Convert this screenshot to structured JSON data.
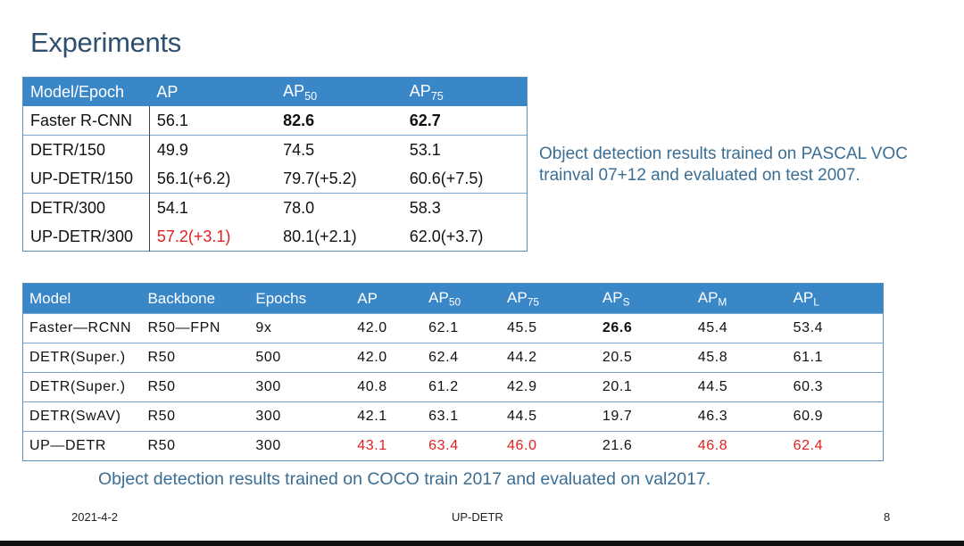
{
  "slide": {
    "title": "Experiments",
    "caption_voc": "Object detection results trained on PASCAL VOC trainval 07+12 and evaluated on test 2007.",
    "caption_coco": "Object detection results trained on COCO train 2017 and evaluated on val2017.",
    "footer": {
      "date": "2021-4-2",
      "title": "UP-DETR",
      "page": "8"
    }
  },
  "voc_table": {
    "headers": [
      {
        "main": "Model/Epoch",
        "sub": ""
      },
      {
        "main": "AP",
        "sub": ""
      },
      {
        "main": "AP",
        "sub": "50"
      },
      {
        "main": "AP",
        "sub": "75"
      }
    ],
    "rows": [
      {
        "cells": [
          "Faster R-CNN",
          "56.1",
          "82.6",
          "62.7"
        ],
        "bold": [
          false,
          false,
          true,
          true
        ],
        "red": [
          false,
          false,
          false,
          false
        ],
        "sep": false
      },
      {
        "cells": [
          "DETR/150",
          "49.9",
          "74.5",
          "53.1"
        ],
        "bold": [
          false,
          false,
          false,
          false
        ],
        "red": [
          false,
          false,
          false,
          false
        ],
        "sep": true
      },
      {
        "cells": [
          "UP-DETR/150",
          "56.1(+6.2)",
          "79.7(+5.2)",
          "60.6(+7.5)"
        ],
        "bold": [
          false,
          false,
          false,
          false
        ],
        "red": [
          false,
          false,
          false,
          false
        ],
        "sep": false
      },
      {
        "cells": [
          "DETR/300",
          "54.1",
          "78.0",
          "58.3"
        ],
        "bold": [
          false,
          false,
          false,
          false
        ],
        "red": [
          false,
          false,
          false,
          false
        ],
        "sep": true
      },
      {
        "cells": [
          "UP-DETR/300",
          "57.2(+3.1)",
          "80.1(+2.1)",
          "62.0(+3.7)"
        ],
        "bold": [
          false,
          false,
          false,
          false
        ],
        "red": [
          false,
          true,
          false,
          false
        ],
        "sep": false
      }
    ]
  },
  "coco_table": {
    "headers": [
      {
        "main": "Model",
        "sub": ""
      },
      {
        "main": "Backbone",
        "sub": ""
      },
      {
        "main": "Epochs",
        "sub": ""
      },
      {
        "main": "AP",
        "sub": ""
      },
      {
        "main": "AP",
        "sub": "50"
      },
      {
        "main": "AP",
        "sub": "75"
      },
      {
        "main": "AP",
        "sub": "S"
      },
      {
        "main": "AP",
        "sub": "M"
      },
      {
        "main": "AP",
        "sub": "L"
      }
    ],
    "rows": [
      {
        "cells": [
          "Faster—RCNN",
          "R50—FPN",
          "9x",
          "42.0",
          "62.1",
          "45.5",
          "26.6",
          "45.4",
          "53.4"
        ],
        "bold": [
          false,
          false,
          false,
          false,
          false,
          false,
          true,
          false,
          false
        ],
        "red": [
          false,
          false,
          false,
          false,
          false,
          false,
          false,
          false,
          false
        ]
      },
      {
        "cells": [
          "DETR(Super.)",
          "R50",
          "500",
          "42.0",
          "62.4",
          "44.2",
          "20.5",
          "45.8",
          "61.1"
        ],
        "bold": [
          false,
          false,
          false,
          false,
          false,
          false,
          false,
          false,
          false
        ],
        "red": [
          false,
          false,
          false,
          false,
          false,
          false,
          false,
          false,
          false
        ]
      },
      {
        "cells": [
          "DETR(Super.)",
          "R50",
          "300",
          "40.8",
          "61.2",
          "42.9",
          "20.1",
          "44.5",
          "60.3"
        ],
        "bold": [
          false,
          false,
          false,
          false,
          false,
          false,
          false,
          false,
          false
        ],
        "red": [
          false,
          false,
          false,
          false,
          false,
          false,
          false,
          false,
          false
        ]
      },
      {
        "cells": [
          "DETR(SwAV)",
          "R50",
          "300",
          "42.1",
          "63.1",
          "44.5",
          "19.7",
          "46.3",
          "60.9"
        ],
        "bold": [
          false,
          false,
          false,
          false,
          false,
          false,
          false,
          false,
          false
        ],
        "red": [
          false,
          false,
          false,
          false,
          false,
          false,
          false,
          false,
          false
        ]
      },
      {
        "cells": [
          "UP—DETR",
          "R50",
          "300",
          "43.1",
          "63.4",
          "46.0",
          "21.6",
          "46.8",
          "62.4"
        ],
        "bold": [
          false,
          false,
          false,
          false,
          false,
          false,
          false,
          false,
          false
        ],
        "red": [
          false,
          false,
          false,
          true,
          true,
          true,
          false,
          true,
          true
        ]
      }
    ]
  }
}
